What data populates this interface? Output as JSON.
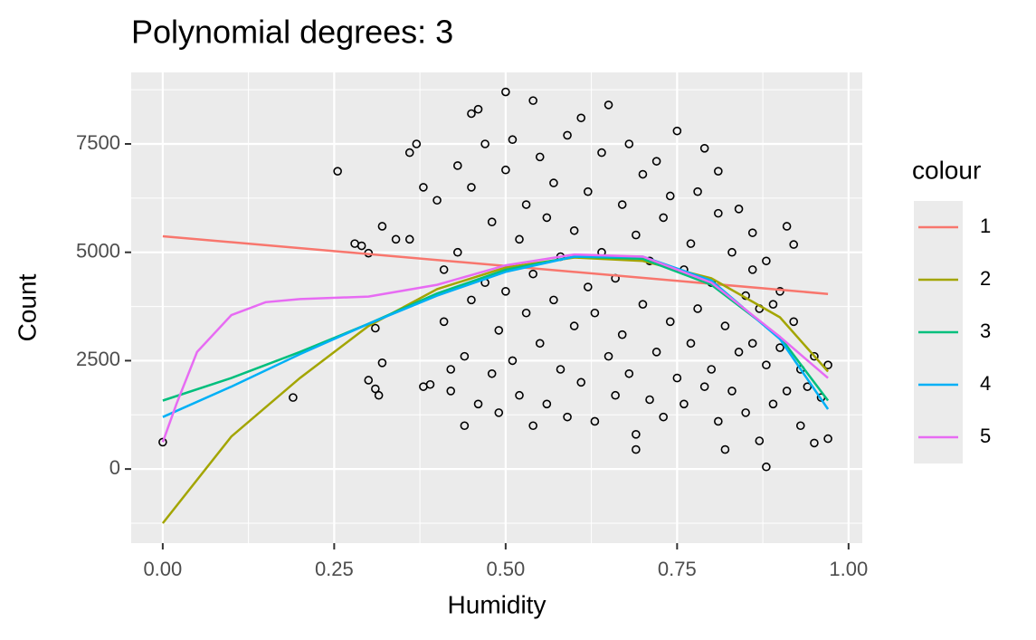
{
  "chart_data": {
    "type": "scatter",
    "title": "Polynomial degrees: 3",
    "x_label": "Humidity",
    "y_label": "Count",
    "legend_title": "colour",
    "xlim": [
      -0.046,
      1.02
    ],
    "ylim": [
      -1710,
      9150
    ],
    "xticks": [
      {
        "value": 0,
        "label": "0.00"
      },
      {
        "value": 0.25,
        "label": "0.25"
      },
      {
        "value": 0.5,
        "label": "0.50"
      },
      {
        "value": 0.75,
        "label": "0.75"
      },
      {
        "value": 1,
        "label": "1.00"
      }
    ],
    "yticks": [
      0,
      2500,
      5000,
      7500
    ],
    "minor_xticks": [
      0.125,
      0.375,
      0.625,
      0.875
    ],
    "minor_yticks": [
      -1250,
      1250,
      3750,
      6250,
      8750
    ],
    "grid": true,
    "point_color": "#000000",
    "x": [
      0,
      0.19,
      0.255,
      0.28,
      0.29,
      0.3,
      0.31,
      0.3,
      0.31,
      0.315,
      0.32,
      0.32,
      0.34,
      0.36,
      0.36,
      0.37,
      0.38,
      0.38,
      0.39,
      0.5,
      0.54,
      0.45,
      0.88,
      0.97,
      0.97,
      0.96,
      0.91,
      0.92,
      0.95,
      0.93,
      0.87,
      0.82,
      0.69,
      0.86,
      0.81,
      0.4,
      0.41,
      0.41,
      0.42,
      0.42,
      0.43,
      0.43,
      0.44,
      0.44,
      0.45,
      0.45,
      0.46,
      0.46,
      0.47,
      0.47,
      0.48,
      0.48,
      0.49,
      0.49,
      0.5,
      0.5,
      0.51,
      0.51,
      0.52,
      0.52,
      0.53,
      0.53,
      0.54,
      0.54,
      0.55,
      0.55,
      0.56,
      0.56,
      0.57,
      0.57,
      0.58,
      0.58,
      0.59,
      0.59,
      0.6,
      0.6,
      0.61,
      0.61,
      0.62,
      0.62,
      0.63,
      0.63,
      0.64,
      0.64,
      0.65,
      0.65,
      0.66,
      0.66,
      0.67,
      0.67,
      0.68,
      0.68,
      0.69,
      0.69,
      0.7,
      0.7,
      0.71,
      0.71,
      0.72,
      0.72,
      0.73,
      0.73,
      0.74,
      0.74,
      0.75,
      0.75,
      0.76,
      0.76,
      0.77,
      0.77,
      0.78,
      0.78,
      0.79,
      0.79,
      0.8,
      0.8,
      0.81,
      0.81,
      0.82,
      0.83,
      0.83,
      0.84,
      0.84,
      0.85,
      0.85,
      0.86,
      0.86,
      0.87,
      0.88,
      0.88,
      0.89,
      0.89,
      0.9,
      0.9,
      0.91,
      0.92,
      0.93,
      0.94,
      0.95
    ],
    "values": [
      620,
      1650,
      6870,
      5200,
      5150,
      4980,
      3250,
      2050,
      1850,
      1700,
      2450,
      5600,
      5300,
      5300,
      7300,
      7500,
      6500,
      1900,
      1950,
      8700,
      8500,
      8200,
      50,
      700,
      2400,
      1650,
      5600,
      5180,
      600,
      1000,
      650,
      450,
      450,
      5450,
      6870,
      6200,
      4600,
      3400,
      2300,
      1800,
      5000,
      7000,
      1000,
      2600,
      3900,
      6500,
      8300,
      1500,
      4300,
      7500,
      2200,
      5700,
      3200,
      1300,
      6900,
      4100,
      2500,
      7600,
      1700,
      5300,
      3600,
      6100,
      1000,
      4500,
      7200,
      2900,
      5800,
      1500,
      3900,
      6600,
      2300,
      4900,
      7700,
      1200,
      3300,
      5500,
      8100,
      2000,
      4200,
      6400,
      1100,
      3600,
      7300,
      5000,
      2600,
      8400,
      4400,
      1700,
      6100,
      3100,
      7500,
      2200,
      5400,
      800,
      3800,
      6800,
      1600,
      4800,
      2700,
      7100,
      5800,
      1200,
      3400,
      6300,
      2100,
      7800,
      4600,
      1500,
      5200,
      2900,
      6400,
      3700,
      1900,
      7400,
      4300,
      2300,
      5900,
      1100,
      3300,
      5000,
      1800,
      6000,
      2700,
      4000,
      1300,
      2900,
      4600,
      3700,
      2400,
      4800,
      1500,
      3800,
      4100,
      2800,
      1800,
      3400,
      2300,
      1900,
      2600
    ],
    "series": [
      {
        "name": "1",
        "color": "#f8766d",
        "x": [
          0,
          0.97
        ],
        "values": [
          5370,
          4040
        ]
      },
      {
        "name": "2",
        "color": "#a3a500",
        "x": [
          0,
          0.1,
          0.2,
          0.3,
          0.4,
          0.5,
          0.6,
          0.7,
          0.8,
          0.9,
          0.97
        ],
        "values": [
          -1250,
          750,
          2100,
          3300,
          4150,
          4650,
          4880,
          4800,
          4400,
          3500,
          2250
        ]
      },
      {
        "name": "3",
        "color": "#00bf7d",
        "x": [
          0,
          0.1,
          0.2,
          0.3,
          0.4,
          0.5,
          0.6,
          0.7,
          0.8,
          0.9,
          0.97
        ],
        "values": [
          1580,
          2100,
          2700,
          3350,
          4050,
          4600,
          4900,
          4850,
          4250,
          3050,
          1580
        ]
      },
      {
        "name": "4",
        "color": "#00b0f6",
        "x": [
          0,
          0.1,
          0.2,
          0.3,
          0.4,
          0.5,
          0.6,
          0.7,
          0.8,
          0.9,
          0.97
        ],
        "values": [
          1200,
          1900,
          2650,
          3350,
          4000,
          4550,
          4900,
          4900,
          4350,
          3000,
          1380
        ]
      },
      {
        "name": "5",
        "color": "#e76bf3",
        "x": [
          0,
          0.02,
          0.05,
          0.1,
          0.15,
          0.2,
          0.3,
          0.4,
          0.5,
          0.6,
          0.7,
          0.8,
          0.9,
          0.97
        ],
        "values": [
          620,
          1500,
          2700,
          3550,
          3850,
          3920,
          3980,
          4250,
          4700,
          4950,
          4900,
          4300,
          3050,
          2100
        ]
      }
    ]
  }
}
